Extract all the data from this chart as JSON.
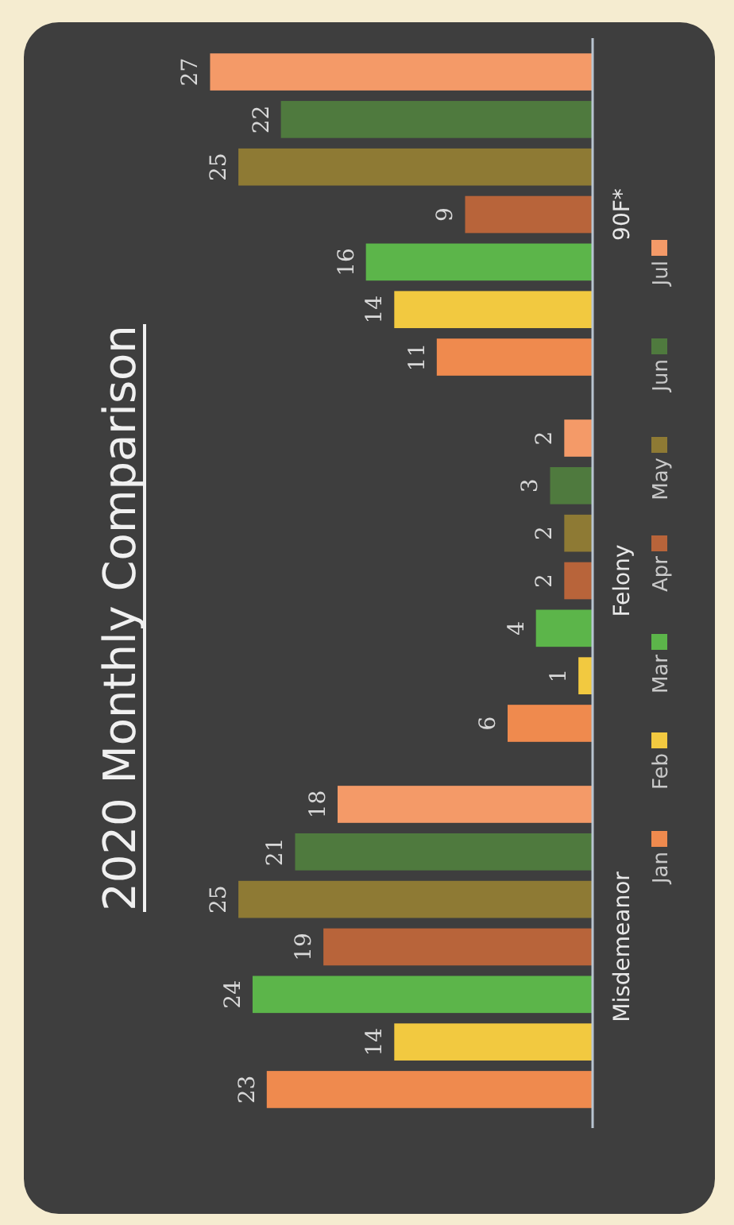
{
  "chart_data": {
    "type": "bar",
    "title": "2020 Monthly Comparison",
    "orientation": "horizontal",
    "categories": [
      "90F*",
      "Felony",
      "Misdemeanor"
    ],
    "series": [
      {
        "name": "Jan",
        "color": "#ef8a4e",
        "values": [
          11,
          6,
          23
        ]
      },
      {
        "name": "Feb",
        "color": "#f2c940",
        "values": [
          14,
          1,
          14
        ]
      },
      {
        "name": "Mar",
        "color": "#5cb54a",
        "values": [
          16,
          4,
          24
        ]
      },
      {
        "name": "Apr",
        "color": "#b8643a",
        "values": [
          9,
          2,
          19
        ]
      },
      {
        "name": "May",
        "color": "#8e7a34",
        "values": [
          25,
          2,
          25
        ]
      },
      {
        "name": "Jun",
        "color": "#4f7a3e",
        "values": [
          22,
          3,
          21
        ]
      },
      {
        "name": "Jul",
        "color": "#f49a68",
        "values": [
          27,
          2,
          18
        ]
      }
    ],
    "relative": false,
    "data_labels": true,
    "legend": "right"
  }
}
